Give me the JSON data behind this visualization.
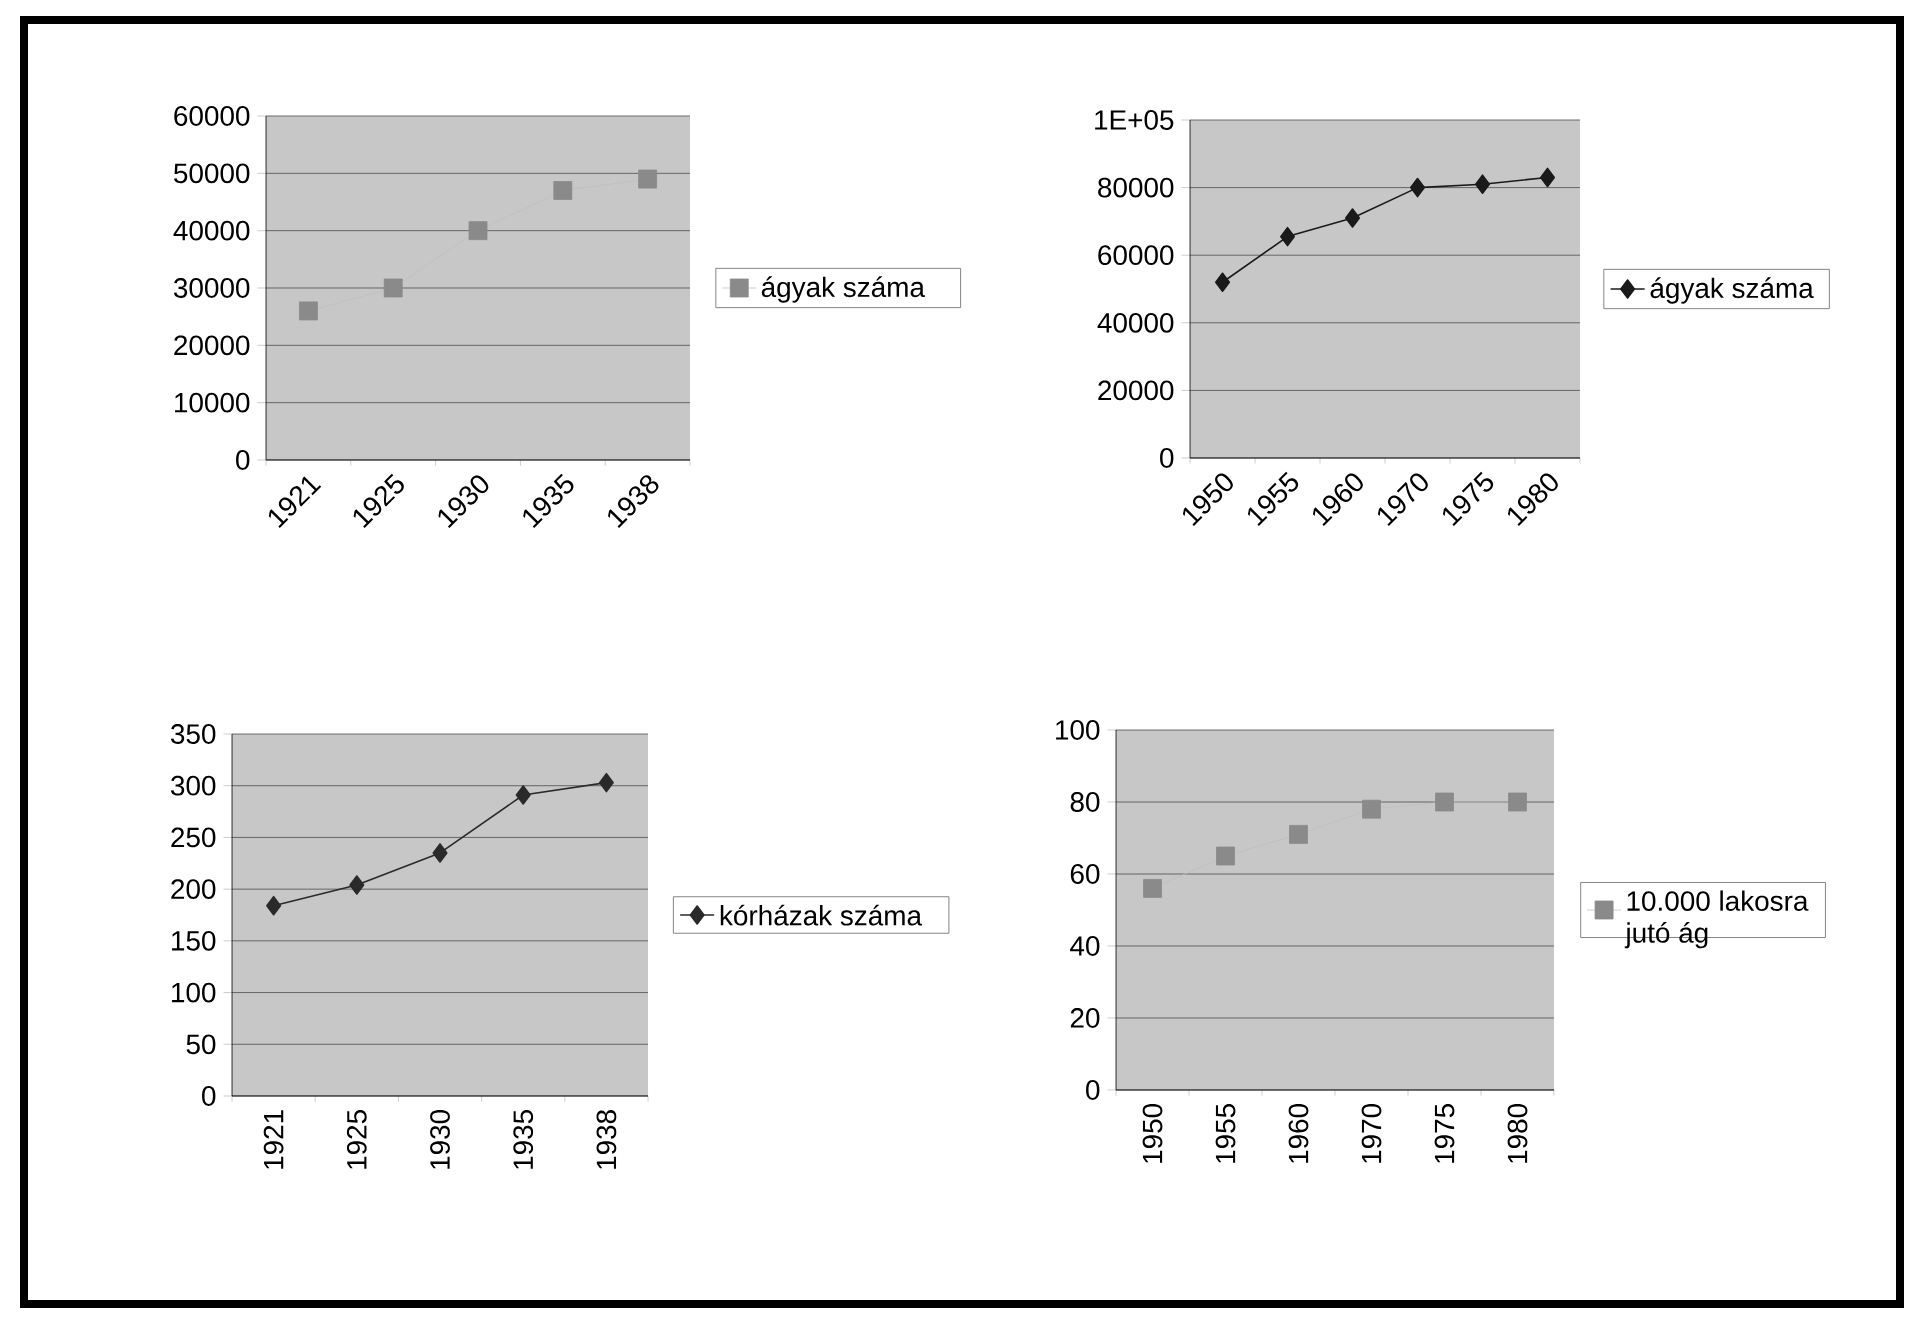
{
  "chart_data": [
    {
      "type": "line",
      "categories": [
        "1921",
        "1925",
        "1930",
        "1935",
        "1938"
      ],
      "series": [
        {
          "name": "ágyak száma",
          "color": "#8a8a8a",
          "values": [
            26000,
            30000,
            40000,
            47000,
            49000
          ]
        }
      ],
      "ylim": [
        0,
        60000
      ],
      "yticks": [
        0,
        10000,
        20000,
        30000,
        40000,
        50000,
        60000
      ],
      "grid": "y",
      "legend": "right",
      "marker": "square",
      "line_style": "solid"
    },
    {
      "type": "line",
      "categories": [
        "1950",
        "1955",
        "1960",
        "1970",
        "1975",
        "1980"
      ],
      "series": [
        {
          "name": "ágyak száma",
          "color": "#1a1a1a",
          "values": [
            52000,
            65500,
            71000,
            80000,
            81000,
            83000
          ]
        }
      ],
      "ylim": [
        0,
        100000
      ],
      "yticks": [
        0,
        20000,
        40000,
        60000,
        80000,
        {
          "value": 100000,
          "label": "1E+05"
        }
      ],
      "grid": "y",
      "legend": "right",
      "marker": "diamond",
      "line_style": "solid"
    },
    {
      "type": "line",
      "categories": [
        "1921",
        "1925",
        "1930",
        "1935",
        "1938"
      ],
      "series": [
        {
          "name": "kórházak száma",
          "color": "#2a2a2a",
          "values": [
            184,
            204,
            235,
            291,
            303
          ]
        }
      ],
      "ylim": [
        0,
        350
      ],
      "yticks": [
        0,
        50,
        100,
        150,
        200,
        250,
        300,
        350
      ],
      "grid": "y",
      "legend": "right",
      "marker": "diamond",
      "line_style": "solid"
    },
    {
      "type": "line",
      "categories": [
        "1950",
        "1955",
        "1960",
        "1970",
        "1975",
        "1980"
      ],
      "series": [
        {
          "name": "10.000 lakosra jutó ág",
          "color": "#8a8a8a",
          "values": [
            56,
            65,
            71,
            78,
            80,
            80
          ]
        }
      ],
      "ylim": [
        0,
        100
      ],
      "yticks": [
        0,
        20,
        40,
        60,
        80,
        100
      ],
      "grid": "y",
      "legend": "right",
      "marker": "square",
      "line_style": "solid"
    }
  ]
}
